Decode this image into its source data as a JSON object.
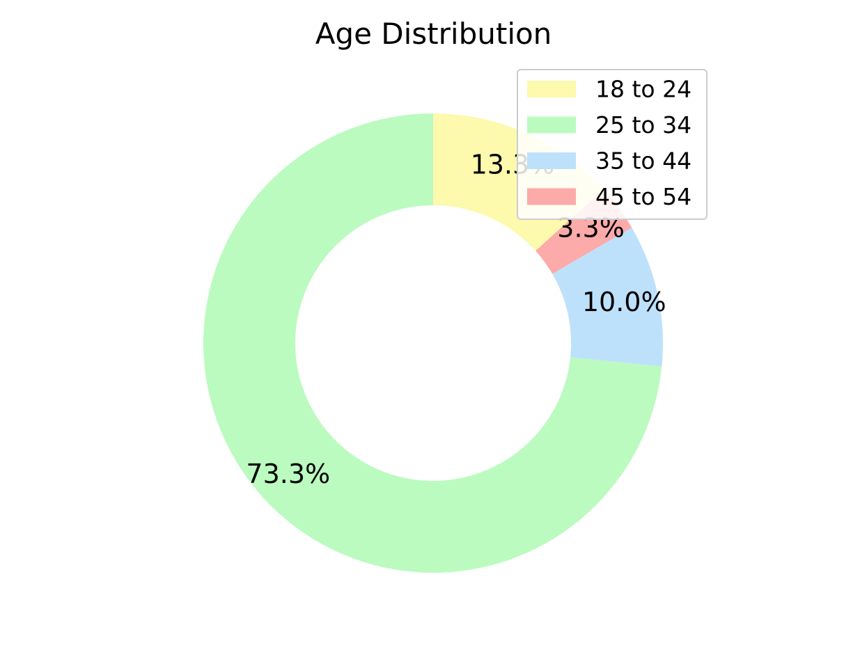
{
  "chart_data": {
    "type": "pie",
    "title": "Age Distribution",
    "donut": true,
    "categories": [
      "18 to 24",
      "25 to 34",
      "35 to 44",
      "45 to 54"
    ],
    "values": [
      13.3,
      73.3,
      10.0,
      3.3
    ],
    "labels": [
      "13.3%",
      "73.3%",
      "10.0%",
      "3.3%"
    ],
    "colors": [
      "#fdf9ad",
      "#bbfbbf",
      "#bde1fb",
      "#fdaaaa"
    ],
    "legend_position": "top-right"
  }
}
